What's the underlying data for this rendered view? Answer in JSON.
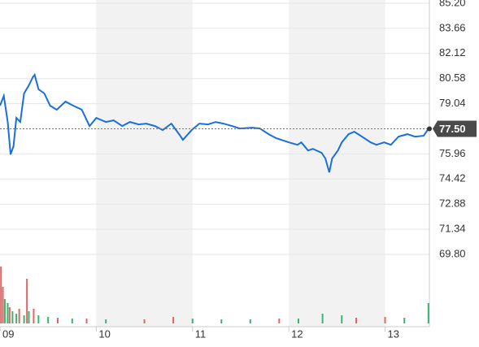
{
  "chart_data": {
    "type": "line",
    "x": [
      9,
      9.04,
      9.08,
      9.11,
      9.14,
      9.17,
      9.21,
      9.25,
      9.3,
      9.34,
      9.36,
      9.4,
      9.46,
      9.52,
      9.59,
      9.68,
      9.76,
      9.85,
      9.93,
      10,
      10.1,
      10.18,
      10.27,
      10.35,
      10.44,
      10.52,
      10.61,
      10.69,
      10.78,
      10.86,
      10.9,
      10.99,
      11.07,
      11.16,
      11.24,
      11.32,
      11.41,
      11.49,
      11.62,
      11.7,
      11.79,
      11.87,
      12,
      12.09,
      12.13,
      12.2,
      12.25,
      12.34,
      12.38,
      12.42,
      12.45,
      12.51,
      12.55,
      12.62,
      12.68,
      12.76,
      12.85,
      12.91,
      12.99,
      13.06,
      13.14,
      13.23,
      13.31,
      13.4,
      13.45
    ],
    "series": [
      {
        "color": "#1a6fd9",
        "values": [
          78.92,
          79.52,
          77.92,
          75.93,
          76.43,
          78.17,
          77.92,
          79.67,
          80.17,
          80.66,
          80.81,
          79.92,
          79.67,
          78.92,
          78.67,
          79.17,
          78.92,
          78.67,
          77.67,
          78.17,
          77.92,
          78.02,
          77.67,
          77.92,
          77.77,
          77.82,
          77.67,
          77.42,
          77.82,
          77.17,
          76.82,
          77.42,
          77.82,
          77.77,
          77.92,
          77.82,
          77.67,
          77.52,
          77.57,
          77.52,
          77.17,
          76.92,
          76.67,
          76.52,
          76.67,
          76.17,
          76.27,
          76.03,
          75.68,
          74.83,
          75.68,
          76.17,
          76.67,
          77.17,
          77.32,
          77.02,
          76.67,
          76.52,
          76.67,
          76.52,
          77.02,
          77.17,
          77.02,
          77.07,
          77.5
        ]
      }
    ],
    "volume": {
      "x": [
        9.01,
        9.03,
        9.05,
        9.08,
        9.1,
        9.13,
        9.17,
        9.2,
        9.25,
        9.28,
        9.3,
        9.35,
        9.4,
        9.5,
        9.6,
        9.75,
        9.9,
        10.1,
        10.5,
        10.8,
        11,
        11.3,
        11.6,
        11.9,
        12.1,
        12.35,
        12.55,
        12.7,
        13,
        13.2,
        13.45
      ],
      "values": [
        70,
        45,
        30,
        25,
        20,
        15,
        12,
        18,
        10,
        55,
        15,
        18,
        10,
        8,
        7,
        6,
        6,
        5,
        5,
        8,
        6,
        5,
        5,
        6,
        6,
        12,
        10,
        7,
        8,
        7,
        25
      ],
      "colors": [
        "#e06666",
        "#e06666",
        "#3cb371",
        "#3cb371",
        "#e06666",
        "#3cb371",
        "#3cb371",
        "#e06666",
        "#3cb371",
        "#e06666",
        "#3cb371",
        "#e06666",
        "#3cb371",
        "#3cb371",
        "#e06666",
        "#3cb371",
        "#e06666",
        "#3cb371",
        "#e06666",
        "#e06666",
        "#3cb371",
        "#3cb371",
        "#3cb371",
        "#e06666",
        "#3cb371",
        "#3cb371",
        "#3cb371",
        "#e06666",
        "#e06666",
        "#3cb371",
        "#3cb371"
      ]
    },
    "xlim": [
      9,
      13.46
    ],
    "xticks": [
      {
        "value": 9,
        "label": "09"
      },
      10,
      11,
      12,
      13
    ],
    "ylim": [
      69.8,
      85.2
    ],
    "yticks": [
      {
        "value": 85.2,
        "label": "85.20"
      },
      83.66,
      82.12,
      80.58,
      79.04,
      75.96,
      74.42,
      72.88,
      71.34,
      {
        "value": 69.8,
        "label": "69.80"
      }
    ],
    "last_price": {
      "value": 77.5,
      "label": "77.50"
    },
    "grid": true
  }
}
